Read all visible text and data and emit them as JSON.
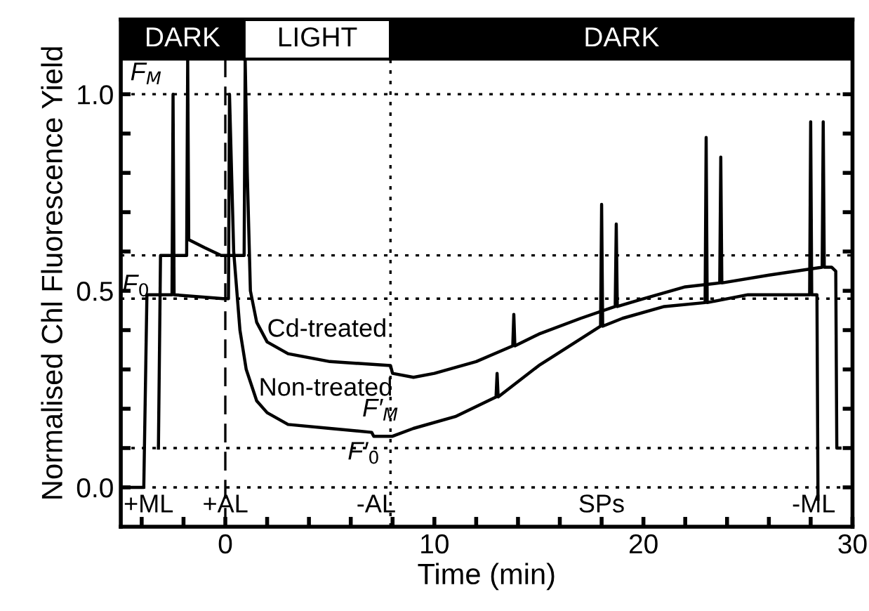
{
  "chart_data": {
    "type": "line",
    "xlabel": "Time (min)",
    "ylabel": "Normalised Chl Fluorescence Yield",
    "xlim": [
      -5,
      30
    ],
    "ylim": [
      -0.1,
      1.19
    ],
    "xticks": [
      {
        "value": -4,
        "label": null
      },
      {
        "value": -2,
        "label": null
      },
      0,
      {
        "value": 2,
        "label": null
      },
      {
        "value": 4,
        "label": null
      },
      {
        "value": 6,
        "label": null
      },
      {
        "value": 8,
        "label": null
      },
      10,
      {
        "value": 12,
        "label": null
      },
      {
        "value": 14,
        "label": null
      },
      {
        "value": 16,
        "label": null
      },
      {
        "value": 18,
        "label": null
      },
      20,
      {
        "value": 22,
        "label": null
      },
      {
        "value": 24,
        "label": null
      },
      {
        "value": 26,
        "label": null
      },
      {
        "value": 28,
        "label": null
      },
      30
    ],
    "yticks": [
      {
        "value": 0.0,
        "label": "0.0"
      },
      {
        "value": 0.1,
        "label": null
      },
      {
        "value": 0.2,
        "label": null
      },
      {
        "value": 0.3,
        "label": null
      },
      {
        "value": 0.4,
        "label": null
      },
      0.5,
      {
        "value": 0.6,
        "label": null
      },
      {
        "value": 0.7,
        "label": null
      },
      {
        "value": 0.8,
        "label": null
      },
      {
        "value": 0.9,
        "label": null
      },
      {
        "value": 1.0,
        "label": "1.0"
      }
    ],
    "grid": false,
    "legend": false,
    "marker": "none",
    "line_style": "solid",
    "series": [
      {
        "color": "#000000",
        "x": [
          -3.2,
          -3.1,
          -2.0,
          -1.85,
          -1.8,
          -1.75,
          -1.0,
          -0.2,
          0.9,
          0.95,
          1.05,
          1.2,
          1.5,
          2,
          3,
          5,
          7.9,
          8.0,
          9,
          10,
          12,
          13.75,
          13.8,
          13.85,
          15,
          17,
          18.65,
          18.7,
          18.75,
          20,
          22,
          23.65,
          23.7,
          23.75,
          26,
          28.55,
          28.6,
          28.65,
          29.0,
          29.2,
          29.25,
          29.4
        ],
        "values": [
          0.1,
          0.59,
          0.59,
          0.59,
          1.09,
          0.63,
          0.61,
          0.59,
          0.59,
          1.09,
          0.8,
          0.5,
          0.42,
          0.37,
          0.34,
          0.32,
          0.31,
          0.29,
          0.28,
          0.29,
          0.32,
          0.36,
          0.44,
          0.36,
          0.39,
          0.43,
          0.46,
          0.67,
          0.46,
          0.48,
          0.51,
          0.52,
          0.84,
          0.52,
          0.54,
          0.56,
          0.93,
          0.56,
          0.56,
          0.55,
          0.1,
          0.1
        ]
      },
      {
        "color": "#000000",
        "x": [
          -5,
          -3.9,
          -3.75,
          -2.55,
          -2.5,
          -2.45,
          -0.1,
          0.15,
          0.2,
          0.4,
          0.7,
          1.0,
          1.5,
          2,
          3,
          5,
          7.0,
          7.1,
          8,
          9,
          11,
          12.95,
          13.0,
          13.05,
          15,
          17.95,
          18.0,
          18.05,
          19,
          21,
          22.95,
          23.0,
          23.05,
          25,
          27.95,
          28.0,
          28.05,
          28.3,
          28.35
        ],
        "values": [
          0,
          0,
          0.49,
          0.49,
          1.0,
          0.49,
          0.48,
          0.48,
          1.0,
          0.6,
          0.4,
          0.3,
          0.22,
          0.19,
          0.16,
          0.15,
          0.14,
          0.13,
          0.13,
          0.15,
          0.18,
          0.23,
          0.29,
          0.23,
          0.31,
          0.41,
          0.72,
          0.41,
          0.43,
          0.46,
          0.47,
          0.89,
          0.47,
          0.49,
          0.49,
          0.93,
          0.49,
          0.49,
          -0.03
        ]
      }
    ],
    "ref_lines": [
      {
        "axis": "y",
        "value": 1.0,
        "line_style": "dotted",
        "color": "#000000"
      },
      {
        "axis": "y",
        "value": 0.59,
        "line_style": "dotted",
        "color": "#000000"
      },
      {
        "axis": "y",
        "value": 0.48,
        "line_style": "dotted",
        "color": "#000000"
      },
      {
        "axis": "y",
        "value": 0.1,
        "line_style": "dotted",
        "color": "#000000"
      },
      {
        "axis": "y",
        "value": 0.0,
        "line_style": "dotted",
        "color": "#000000"
      },
      {
        "axis": "x",
        "value": 0,
        "line_style": "dashed",
        "color": "#000000"
      },
      {
        "axis": "x",
        "value": 7.9,
        "line_style": "dotted",
        "color": "#000000"
      }
    ],
    "bands": [
      {
        "axis": "x",
        "from": -5,
        "to": 0.9,
        "label": "DARK",
        "color": "#000000"
      },
      {
        "axis": "x",
        "from": 0.9,
        "to": 7.9,
        "label": "LIGHT",
        "color": "#ffffff"
      },
      {
        "axis": "x",
        "from": 7.9,
        "to": 30,
        "label": "DARK",
        "color": "#000000"
      }
    ],
    "annotations": [
      {
        "text": "Cd-treated",
        "x": 2.0,
        "y": 0.4
      },
      {
        "text": "Non-treated",
        "x": 1.6,
        "y": 0.25
      },
      "F$_{M}$",
      "F$_{0}$",
      "F′$_{M}$",
      "F′$_{0}$",
      "+ML",
      "+AL",
      "-AL",
      "SPs",
      "-ML"
    ]
  }
}
